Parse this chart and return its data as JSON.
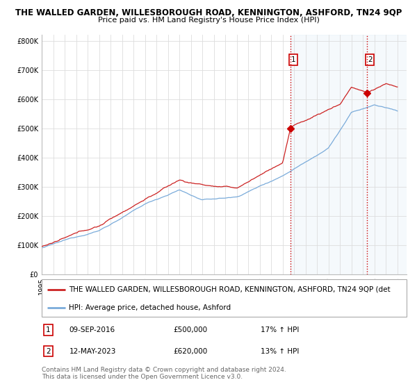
{
  "title": "THE WALLED GARDEN, WILLESBOROUGH ROAD, KENNINGTON, ASHFORD, TN24 9QP",
  "subtitle": "Price paid vs. HM Land Registry's House Price Index (HPI)",
  "ylabel_ticks": [
    "£0",
    "£100K",
    "£200K",
    "£300K",
    "£400K",
    "£500K",
    "£600K",
    "£700K",
    "£800K"
  ],
  "ytick_vals": [
    0,
    100000,
    200000,
    300000,
    400000,
    500000,
    600000,
    700000,
    800000
  ],
  "ylim": [
    0,
    820000
  ],
  "xlim_start": 1995.0,
  "xlim_end": 2026.8,
  "hpi_color": "#7aabda",
  "price_color": "#cc2222",
  "fill_color": "#c8dff2",
  "vline_color": "#cc0000",
  "grid_color": "#dddddd",
  "bg_color": "#ffffff",
  "plot_bg": "#ffffff",
  "transaction1_x": 2016.69,
  "transaction1_y": 500000,
  "transaction2_x": 2023.36,
  "transaction2_y": 620000,
  "transaction1_date": "09-SEP-2016",
  "transaction1_price": "£500,000",
  "transaction1_hpi": "17% ↑ HPI",
  "transaction2_date": "12-MAY-2023",
  "transaction2_price": "£620,000",
  "transaction2_hpi": "13% ↑ HPI",
  "legend_label_red": "THE WALLED GARDEN, WILLESBOROUGH ROAD, KENNINGTON, ASHFORD, TN24 9QP (det",
  "legend_label_blue": "HPI: Average price, detached house, Ashford",
  "footer1": "Contains HM Land Registry data © Crown copyright and database right 2024.",
  "footer2": "This data is licensed under the Open Government Licence v3.0.",
  "title_fontsize": 8.5,
  "subtitle_fontsize": 8,
  "tick_fontsize": 7,
  "legend_fontsize": 7.5,
  "footer_fontsize": 6.5
}
